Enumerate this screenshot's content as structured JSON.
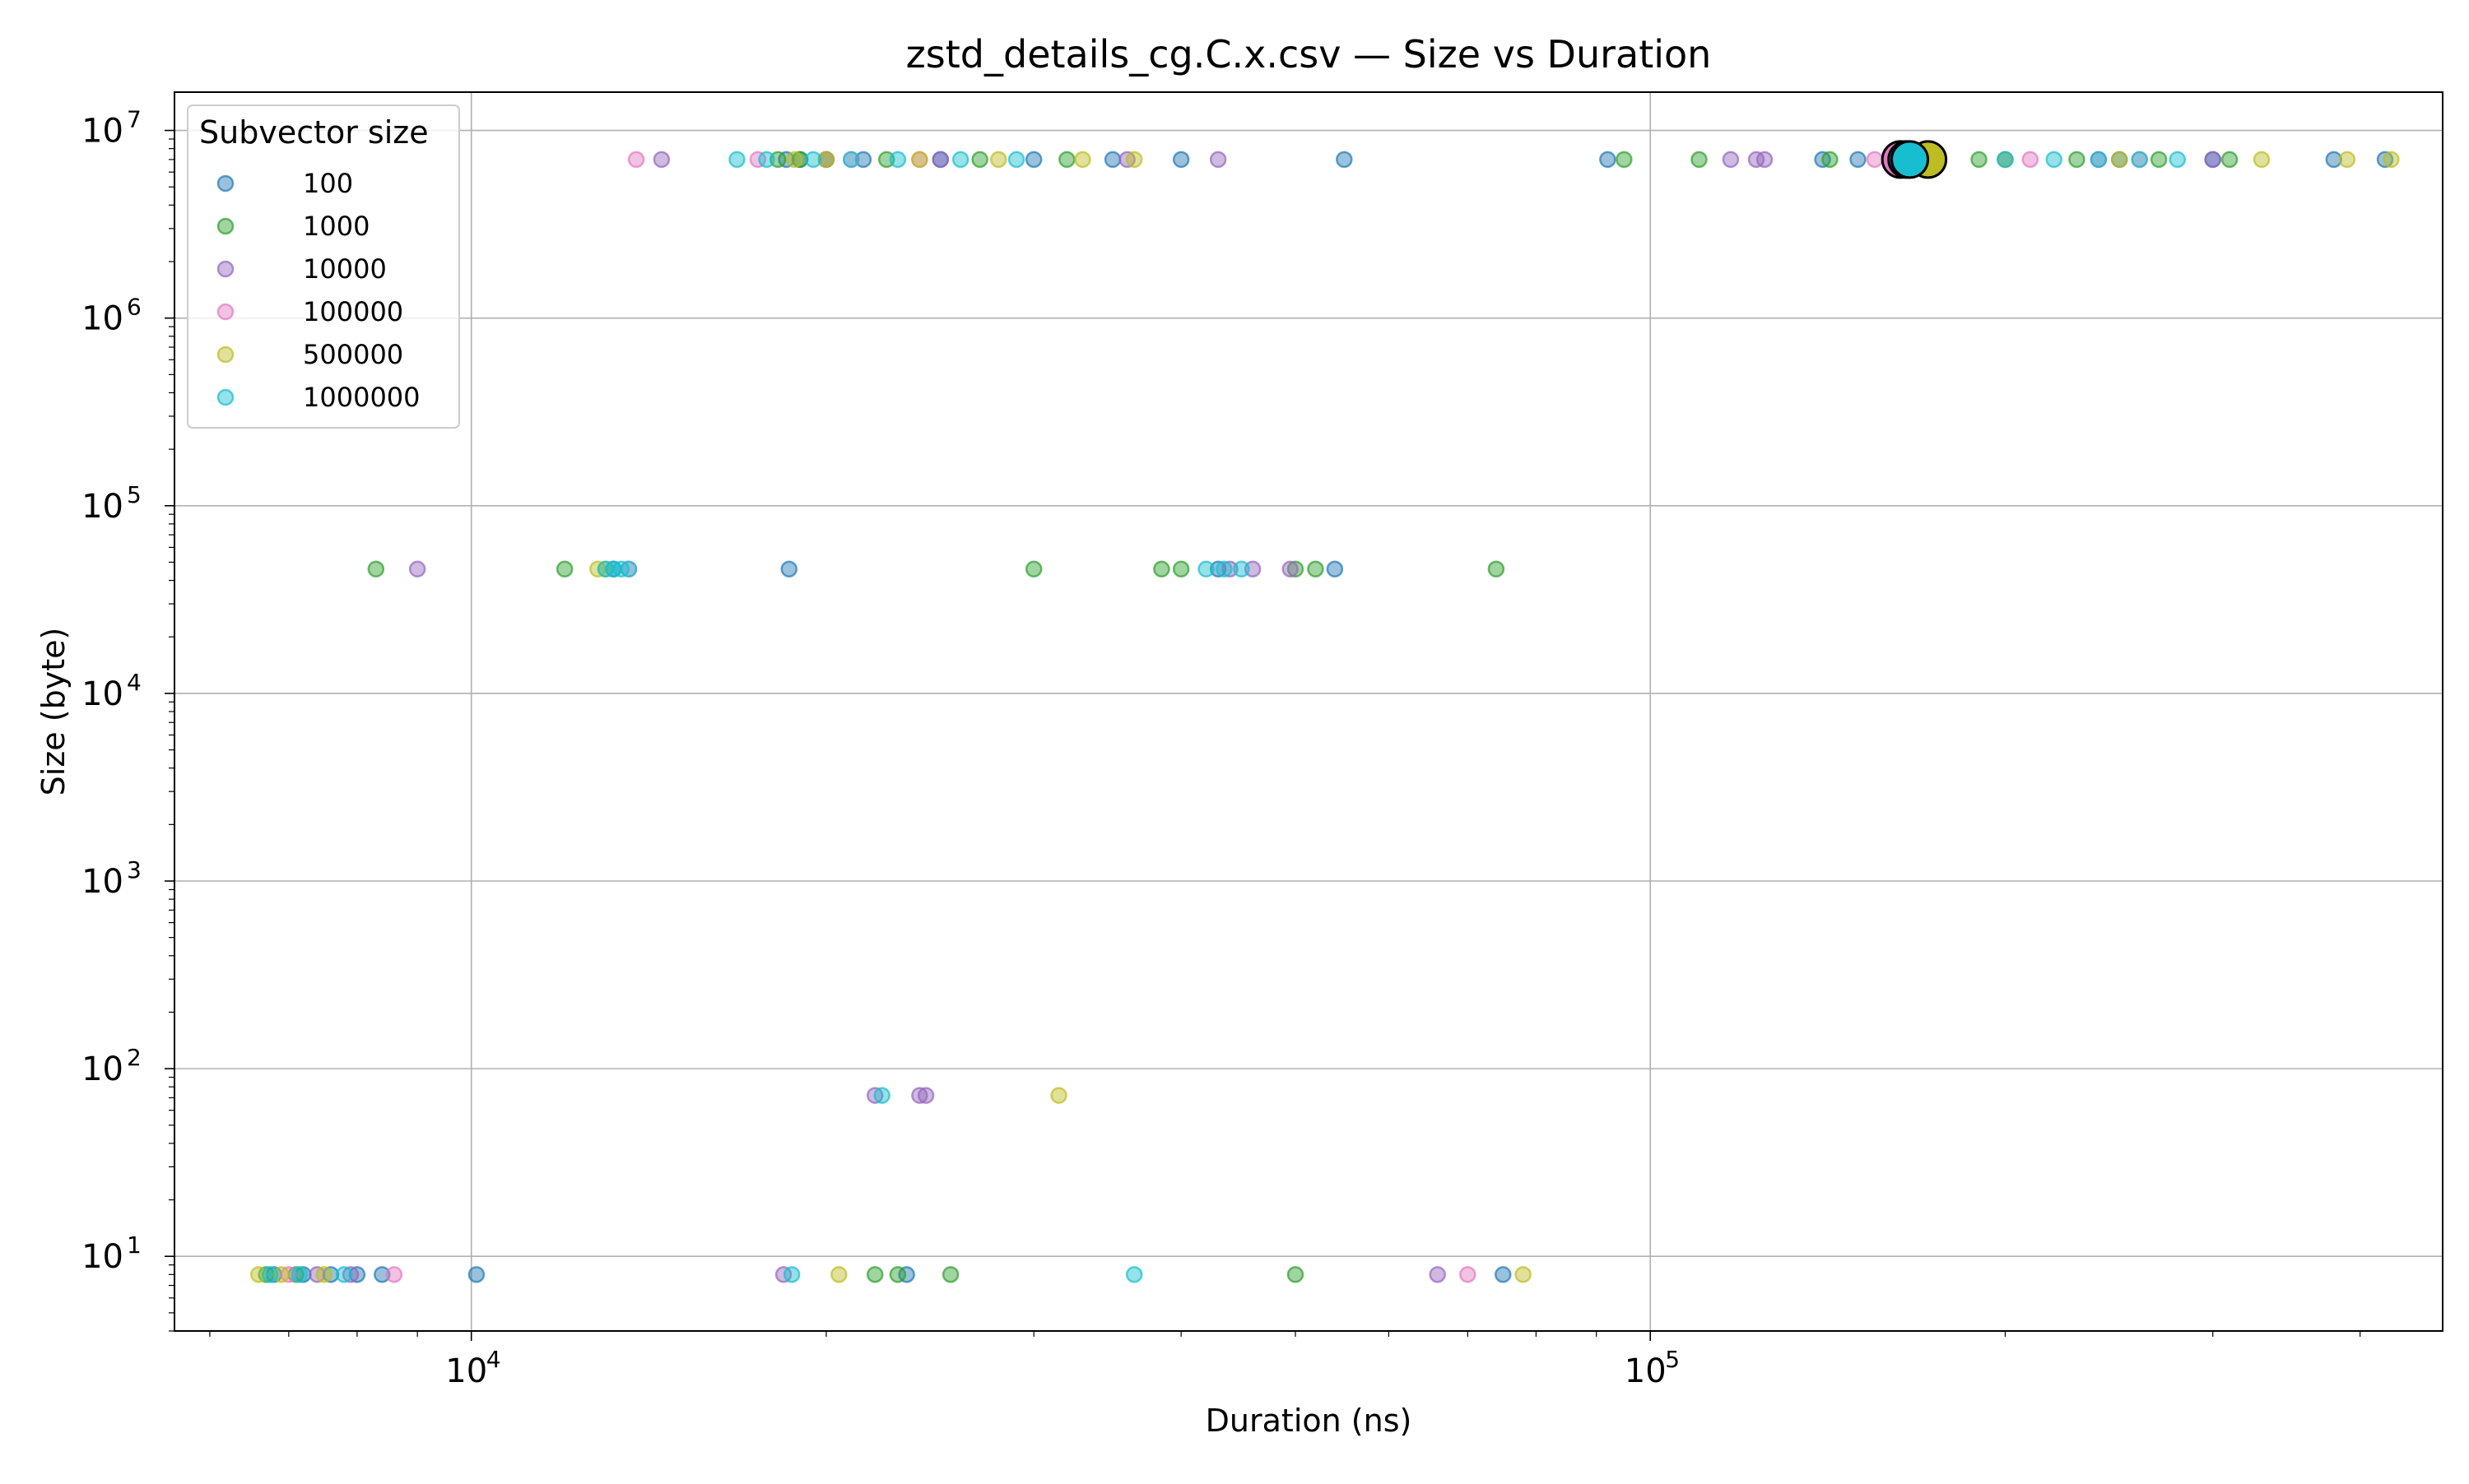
{
  "chart_data": {
    "type": "scatter",
    "title": "zstd_details_cg.C.x.csv — Size vs Duration",
    "xlabel": "Duration (ns)",
    "ylabel": "Size (byte)",
    "xscale": "log",
    "yscale": "log",
    "xlim": [
      5600,
      470000
    ],
    "ylim": [
      4,
      16000000
    ],
    "grid": true,
    "x_ticks": [
      {
        "value": 10000,
        "base": "10",
        "exp": "4"
      },
      {
        "value": 100000,
        "base": "10",
        "exp": "5"
      }
    ],
    "y_ticks": [
      {
        "value": 10,
        "base": "10",
        "exp": "1"
      },
      {
        "value": 100,
        "base": "10",
        "exp": "2"
      },
      {
        "value": 1000,
        "base": "10",
        "exp": "3"
      },
      {
        "value": 10000,
        "base": "10",
        "exp": "4"
      },
      {
        "value": 100000,
        "base": "10",
        "exp": "5"
      },
      {
        "value": 1000000,
        "base": "10",
        "exp": "6"
      },
      {
        "value": 10000000,
        "base": "10",
        "exp": "7"
      }
    ],
    "legend": {
      "title": "Subvector size",
      "placement": "top-left"
    },
    "series": [
      {
        "name": "100",
        "color": "#1f77b4",
        "points": [
          [
            6800,
            8
          ],
          [
            7200,
            8
          ],
          [
            7600,
            8
          ],
          [
            8000,
            8
          ],
          [
            8400,
            8
          ],
          [
            10100,
            8
          ],
          [
            23400,
            8
          ],
          [
            75000,
            8
          ],
          [
            18600,
            46000
          ],
          [
            54000,
            46000
          ],
          [
            43000,
            46000
          ],
          [
            13200,
            46000
          ],
          [
            18500,
            7000000
          ],
          [
            19000,
            7000000
          ],
          [
            21500,
            7000000
          ],
          [
            25000,
            7000000
          ],
          [
            30000,
            7000000
          ],
          [
            35000,
            7000000
          ],
          [
            40000,
            7000000
          ],
          [
            55000,
            7000000
          ],
          [
            92000,
            7000000
          ],
          [
            140000,
            7000000
          ],
          [
            150000,
            7000000
          ],
          [
            165000,
            7000000
          ],
          [
            200000,
            7000000
          ],
          [
            250000,
            7000000
          ],
          [
            300000,
            7000000
          ],
          [
            380000,
            7000000
          ],
          [
            420000,
            7000000
          ]
        ]
      },
      {
        "name": "1000",
        "color": "#2ca02c",
        "points": [
          [
            6700,
            8
          ],
          [
            7100,
            8
          ],
          [
            22000,
            8
          ],
          [
            23000,
            8
          ],
          [
            25500,
            8
          ],
          [
            50000,
            8
          ],
          [
            8300,
            46000
          ],
          [
            12000,
            46000
          ],
          [
            30000,
            46000
          ],
          [
            38500,
            46000
          ],
          [
            40000,
            46000
          ],
          [
            50000,
            46000
          ],
          [
            52000,
            46000
          ],
          [
            74000,
            46000
          ],
          [
            18200,
            7000000
          ],
          [
            19000,
            7000000
          ],
          [
            20000,
            7000000
          ],
          [
            22500,
            7000000
          ],
          [
            27000,
            7000000
          ],
          [
            32000,
            7000000
          ],
          [
            95000,
            7000000
          ],
          [
            110000,
            7000000
          ],
          [
            142000,
            7000000
          ],
          [
            190000,
            7000000
          ],
          [
            230000,
            7000000
          ],
          [
            270000,
            7000000
          ],
          [
            310000,
            7000000
          ]
        ]
      },
      {
        "name": "10000",
        "color": "#9467bd",
        "points": [
          [
            7400,
            8
          ],
          [
            7900,
            8
          ],
          [
            18400,
            8
          ],
          [
            66000,
            8
          ],
          [
            9000,
            46000
          ],
          [
            44000,
            46000
          ],
          [
            46000,
            46000
          ],
          [
            49500,
            46000
          ],
          [
            22000,
            72
          ],
          [
            24000,
            72
          ],
          [
            24300,
            72
          ],
          [
            14500,
            7000000
          ],
          [
            20000,
            7000000
          ],
          [
            25000,
            7000000
          ],
          [
            36000,
            7000000
          ],
          [
            43000,
            7000000
          ],
          [
            117000,
            7000000
          ],
          [
            123000,
            7000000
          ],
          [
            125000,
            7000000
          ],
          [
            160000,
            7000000
          ],
          [
            240000,
            7000000
          ],
          [
            300000,
            7000000
          ]
        ]
      },
      {
        "name": "100000",
        "color": "#e377c2",
        "points": [
          [
            7000,
            8
          ],
          [
            8600,
            8
          ],
          [
            70000,
            8
          ],
          [
            13600,
            46000
          ],
          [
            13800,
            7000000
          ],
          [
            17500,
            7000000
          ],
          [
            21000,
            7000000
          ],
          [
            24000,
            7000000
          ],
          [
            155000,
            7000000
          ],
          [
            210000,
            7000000
          ],
          [
            260000,
            7000000
          ]
        ]
      },
      {
        "name": "500000",
        "color": "#bcbd22",
        "points": [
          [
            6600,
            8
          ],
          [
            6900,
            8
          ],
          [
            7500,
            8
          ],
          [
            20500,
            8
          ],
          [
            78000,
            8
          ],
          [
            12800,
            46000
          ],
          [
            13000,
            46000
          ],
          [
            31500,
            72
          ],
          [
            18800,
            7000000
          ],
          [
            20000,
            7000000
          ],
          [
            24000,
            7000000
          ],
          [
            28000,
            7000000
          ],
          [
            33000,
            7000000
          ],
          [
            36500,
            7000000
          ],
          [
            165000,
            7000000
          ],
          [
            200000,
            7000000
          ],
          [
            250000,
            7000000
          ],
          [
            330000,
            7000000
          ],
          [
            390000,
            7000000
          ],
          [
            425000,
            7000000
          ]
        ]
      },
      {
        "name": "1000000",
        "color": "#17becf",
        "points": [
          [
            6750,
            8
          ],
          [
            7150,
            8
          ],
          [
            7800,
            8
          ],
          [
            18700,
            8
          ],
          [
            36500,
            8
          ],
          [
            13000,
            46000
          ],
          [
            13200,
            46000
          ],
          [
            13400,
            46000
          ],
          [
            13600,
            46000
          ],
          [
            42000,
            46000
          ],
          [
            43500,
            46000
          ],
          [
            45000,
            46000
          ],
          [
            22300,
            72
          ],
          [
            16800,
            7000000
          ],
          [
            17800,
            7000000
          ],
          [
            19500,
            7000000
          ],
          [
            21000,
            7000000
          ],
          [
            23000,
            7000000
          ],
          [
            26000,
            7000000
          ],
          [
            29000,
            7000000
          ],
          [
            200000,
            7000000
          ],
          [
            220000,
            7000000
          ],
          [
            240000,
            7000000
          ],
          [
            260000,
            7000000
          ],
          [
            280000,
            7000000
          ]
        ]
      }
    ],
    "highlighted_points": [
      {
        "series": "100000",
        "x": 163000,
        "y": 7000000,
        "color": "#e377c2"
      },
      {
        "series": "500000",
        "x": 172000,
        "y": 7000000,
        "color": "#bcbd22"
      },
      {
        "series": "100",
        "x": 165000,
        "y": 7000000,
        "color": "#1f77b4"
      },
      {
        "series": "1000000",
        "x": 166000,
        "y": 7000000,
        "color": "#17becf"
      }
    ]
  }
}
